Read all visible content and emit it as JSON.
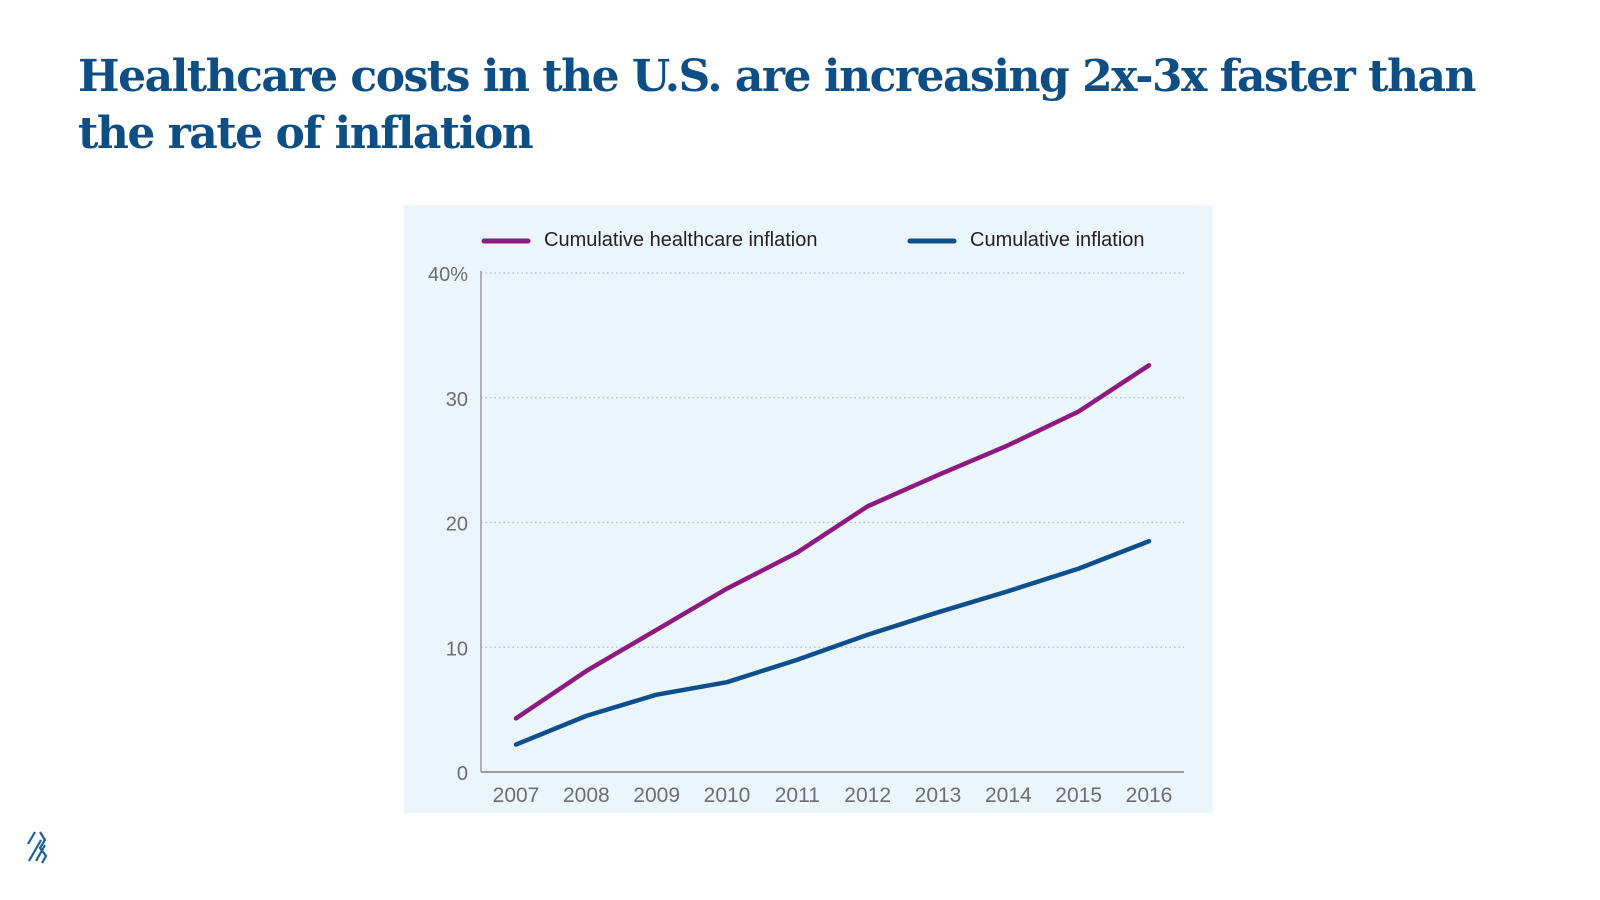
{
  "title": "Healthcare costs in the U.S. are increasing 2x-3x faster than the rate of inflation",
  "chart_data": {
    "type": "line",
    "title": "",
    "xlabel": "",
    "ylabel": "",
    "categories": [
      "2007",
      "2008",
      "2009",
      "2010",
      "2011",
      "2012",
      "2013",
      "2014",
      "2015",
      "2016"
    ],
    "series": [
      {
        "name": "Cumulative healthcare inflation",
        "color": "#8e1a7f",
        "values": [
          4.3,
          8.1,
          11.4,
          14.7,
          17.6,
          21.3,
          23.8,
          26.2,
          28.9,
          32.6
        ]
      },
      {
        "name": "Cumulative inflation",
        "color": "#0d4e8c",
        "values": [
          2.2,
          4.5,
          6.2,
          7.2,
          9.0,
          11.0,
          12.8,
          14.5,
          16.3,
          18.5
        ]
      }
    ],
    "ylim": [
      0,
      40
    ],
    "yticks": [
      0,
      10,
      20,
      30,
      40
    ],
    "ytick_labels": [
      "0",
      "10",
      "20",
      "30",
      "40%"
    ],
    "grid": "horizontal dotted",
    "legend": "top",
    "background": "#eaf5fc"
  }
}
